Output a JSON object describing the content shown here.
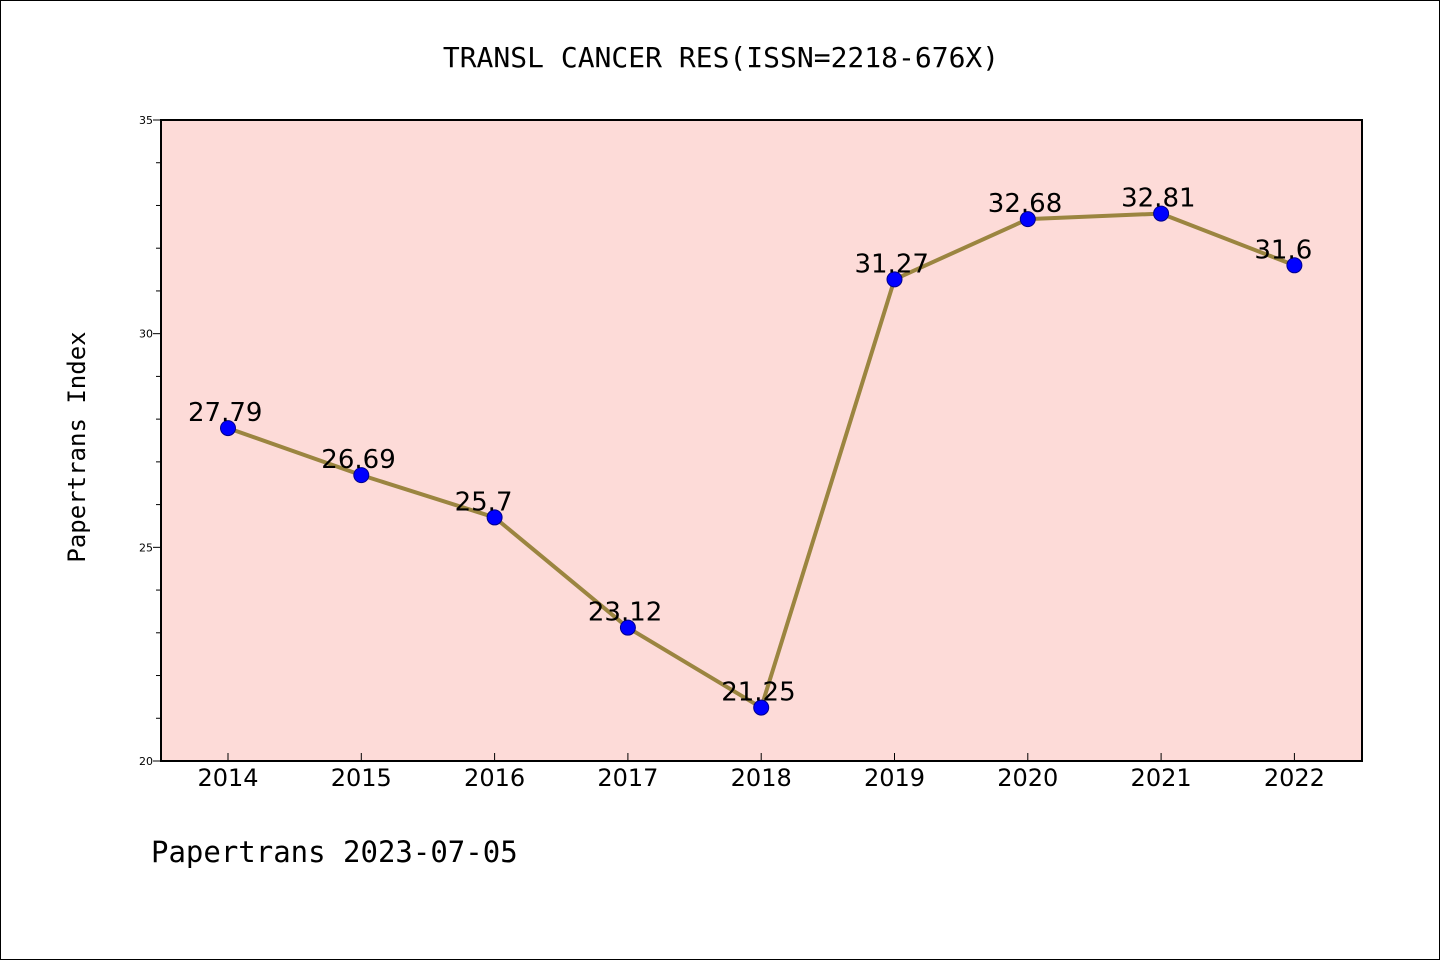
{
  "footer": {
    "text": "Papertrans 2023-07-05"
  },
  "colors": {
    "plot_background": "#fddbd8",
    "line": "#9b8540",
    "marker": "#0000ff",
    "marker_edge": "#00008b"
  },
  "chart_data": {
    "type": "line",
    "title": "TRANSL CANCER RES(ISSN=2218-676X)",
    "xlabel": "",
    "ylabel": "Papertrans Index",
    "categories": [
      "2014",
      "2015",
      "2016",
      "2017",
      "2018",
      "2019",
      "2020",
      "2021",
      "2022"
    ],
    "series": [
      {
        "values": [
          27.79,
          26.69,
          25.7,
          23.12,
          21.25,
          31.27,
          32.68,
          32.81,
          31.6
        ],
        "labels": [
          "27.79",
          "26.69",
          "25.7",
          "23.12",
          "21.25",
          "31.27",
          "32.68",
          "32.81",
          "31.6"
        ]
      }
    ],
    "ylim": [
      20,
      35
    ],
    "yticks": [
      20,
      25,
      30,
      35
    ],
    "yticks_minor": [
      21,
      22,
      23,
      24,
      26,
      27,
      28,
      29,
      31,
      32,
      33,
      34
    ],
    "grid": false,
    "legend": "none"
  }
}
